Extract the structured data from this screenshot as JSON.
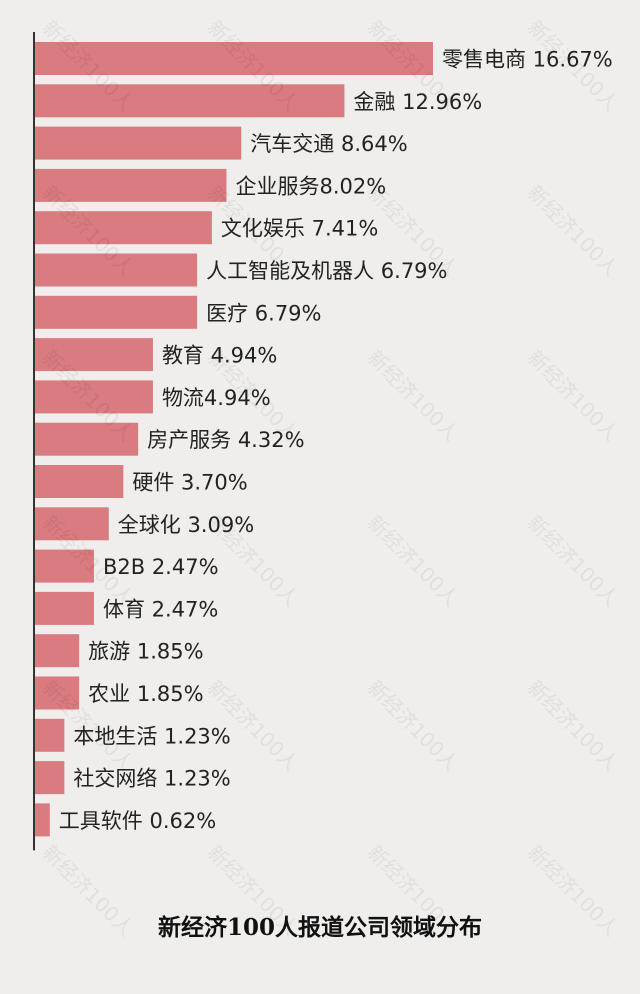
{
  "chart_data": {
    "type": "bar",
    "orientation": "horizontal",
    "title": "新经济100人报道公司领域分布",
    "categories": [
      "零售电商",
      "金融",
      "汽车交通",
      "企业服务",
      "文化娱乐",
      "人工智能及机器人",
      "医疗",
      "教育",
      "物流",
      "房产服务",
      "硬件",
      "全球化",
      "B2B",
      "体育",
      "旅游",
      "农业",
      "本地生活",
      "社交网络",
      "工具软件"
    ],
    "values": [
      16.67,
      12.96,
      8.64,
      8.02,
      7.41,
      6.79,
      6.79,
      4.94,
      4.94,
      4.32,
      3.7,
      3.09,
      2.47,
      2.47,
      1.85,
      1.85,
      1.23,
      1.23,
      0.62
    ],
    "labels": [
      "零售电商 16.67%",
      "金融 12.96%",
      "汽车交通 8.64%",
      "企业服务8.02%",
      "文化娱乐 7.41%",
      "人工智能及机器人 6.79%",
      "医疗 6.79%",
      "教育 4.94%",
      "物流4.94%",
      "房产服务 4.32%",
      "硬件 3.70%",
      "全球化 3.09%",
      "B2B 2.47%",
      "体育 2.47%",
      "旅游 1.85%",
      "农业 1.85%",
      "本地生活 1.23%",
      "社交网络 1.23%",
      "工具软件 0.62%"
    ],
    "value_unit": "%",
    "xlim": [
      0,
      18
    ],
    "grid": false,
    "colors": {
      "bar": "#d97b7f",
      "axis": "#333333",
      "label": "#222222"
    }
  },
  "watermark": {
    "text": "新经济100人"
  }
}
